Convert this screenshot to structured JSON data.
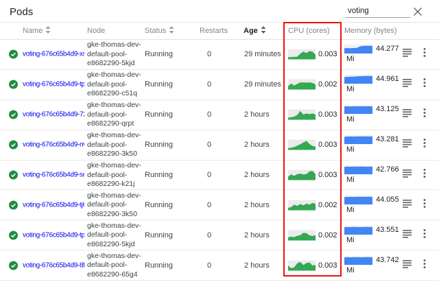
{
  "header": {
    "title": "Pods",
    "search": {
      "value": "voting"
    }
  },
  "colors": {
    "link_blue": "#7088d0",
    "ok_green": "#1e8e3e",
    "chart_green": "#34a853",
    "chart_green_bg": "#ebebeb",
    "chart_blue": "#4285f4",
    "chart_blue_bg": "#f1f1f1",
    "highlight_red": "#ee1111"
  },
  "table": {
    "columns": [
      {
        "label": "Name",
        "sortable": true
      },
      {
        "label": "Node",
        "sortable": false
      },
      {
        "label": "Status",
        "sortable": true
      },
      {
        "label": "Restarts",
        "sortable": false
      },
      {
        "label": "Age",
        "sortable": true,
        "active_sort": true
      },
      {
        "label": "CPU (cores)",
        "sortable": false
      },
      {
        "label": "Memory (bytes)",
        "sortable": false
      }
    ],
    "rows": [
      {
        "name": "voting-676c65b4d9-xs-",
        "node_lines": [
          "gke-thomas-dev-",
          "default-pool-",
          "e8682290-5kjd"
        ],
        "status": "Running",
        "restarts": "0",
        "age": "29 minutes",
        "cpu_value": "0.003",
        "cpu_points": [
          0.18,
          0.18,
          0.2,
          0.22,
          0.55,
          0.8,
          0.62,
          0.85,
          0.78,
          0.45
        ],
        "memory_value": "44.277",
        "memory_unit": "Mi",
        "memory_points": [
          0.62,
          0.63,
          0.62,
          0.64,
          0.66,
          0.85,
          0.92,
          0.93,
          0.93,
          0.92
        ]
      },
      {
        "name": "voting-676c65b4d9-tpr",
        "node_lines": [
          "gke-thomas-dev-",
          "default-pool-",
          "e8682290-c51q"
        ],
        "status": "Running",
        "restarts": "0",
        "age": "29 minutes",
        "cpu_value": "0.002",
        "cpu_points": [
          0.3,
          0.6,
          0.38,
          0.55,
          0.72,
          0.72,
          0.7,
          0.72,
          0.66,
          0.5
        ],
        "memory_value": "44.961",
        "memory_unit": "Mi",
        "memory_points": [
          0.8,
          0.82,
          0.84,
          0.85,
          0.88,
          0.9,
          0.92,
          0.93,
          0.93,
          0.92
        ]
      },
      {
        "name": "voting-676c65b4d9-72",
        "node_lines": [
          "gke-thomas-dev-",
          "default-pool-",
          "e8682290-qrpt"
        ],
        "status": "Running",
        "restarts": "0",
        "age": "2 hours",
        "cpu_value": "0.003",
        "cpu_points": [
          0.15,
          0.2,
          0.28,
          0.45,
          0.9,
          0.5,
          0.62,
          0.55,
          0.62,
          0.5
        ],
        "memory_value": "43.125",
        "memory_unit": "Mi",
        "memory_points": [
          0.9,
          0.91,
          0.9,
          0.92,
          0.91,
          0.92,
          0.91,
          0.92,
          0.92,
          0.91
        ]
      },
      {
        "name": "voting-676c65b4d9-nvt",
        "node_lines": [
          "gke-thomas-dev-",
          "default-pool-",
          "e8682290-3k50"
        ],
        "status": "Running",
        "restarts": "0",
        "age": "2 hours",
        "cpu_value": "0.003",
        "cpu_points": [
          0.12,
          0.18,
          0.25,
          0.4,
          0.55,
          0.75,
          0.95,
          0.6,
          0.35,
          0.3
        ],
        "memory_value": "43.281",
        "memory_unit": "Mi",
        "memory_points": [
          0.88,
          0.9,
          0.92,
          0.91,
          0.92,
          0.93,
          0.92,
          0.93,
          0.92,
          0.93
        ]
      },
      {
        "name": "voting-676c65b4d9-srl",
        "node_lines": [
          "gke-thomas-dev-",
          "default-pool-",
          "e8682290-k21j"
        ],
        "status": "Running",
        "restarts": "0",
        "age": "2 hours",
        "cpu_value": "0.003",
        "cpu_points": [
          0.3,
          0.55,
          0.4,
          0.6,
          0.65,
          0.55,
          0.6,
          0.9,
          0.95,
          0.6
        ],
        "memory_value": "42.766",
        "memory_unit": "Mi",
        "memory_points": [
          0.9,
          0.92,
          0.91,
          0.93,
          0.92,
          0.93,
          0.92,
          0.91,
          0.92,
          0.92
        ]
      },
      {
        "name": "voting-676c65b4d9-tj6",
        "node_lines": [
          "gke-thomas-dev-",
          "default-pool-",
          "e8682290-3k50"
        ],
        "status": "Running",
        "restarts": "0",
        "age": "2 hours",
        "cpu_value": "0.002",
        "cpu_points": [
          0.2,
          0.28,
          0.55,
          0.42,
          0.62,
          0.48,
          0.68,
          0.55,
          0.75,
          0.65
        ],
        "memory_value": "44.055",
        "memory_unit": "Mi",
        "memory_points": [
          0.89,
          0.9,
          0.92,
          0.91,
          0.93,
          0.92,
          0.93,
          0.92,
          0.93,
          0.92
        ]
      },
      {
        "name": "voting-676c65b4d9-tpj",
        "node_lines": [
          "gke-thomas-dev-",
          "default-pool-",
          "e8682290-5kjd"
        ],
        "status": "Running",
        "restarts": "0",
        "age": "2 hours",
        "cpu_value": "0.002",
        "cpu_points": [
          0.28,
          0.35,
          0.3,
          0.45,
          0.52,
          0.78,
          0.75,
          0.5,
          0.42,
          0.52
        ],
        "memory_value": "43.551",
        "memory_unit": "Mi",
        "memory_points": [
          0.9,
          0.91,
          0.92,
          0.93,
          0.92,
          0.91,
          0.92,
          0.93,
          0.92,
          0.93
        ]
      },
      {
        "name": "voting-676c65b4d9-8f8",
        "node_lines": [
          "gke-thomas-dev-",
          "default-pool-",
          "e8682290-65g4"
        ],
        "status": "Running",
        "restarts": "0",
        "age": "2 hours",
        "cpu_value": "0.003",
        "cpu_points": [
          0.5,
          0.2,
          0.3,
          0.75,
          0.9,
          0.55,
          0.78,
          0.85,
          0.5,
          0.58
        ],
        "memory_value": "43.742",
        "memory_unit": "Mi",
        "memory_points": [
          0.9,
          0.92,
          0.91,
          0.92,
          0.93,
          0.92,
          0.91,
          0.93,
          0.92,
          0.92
        ]
      }
    ]
  }
}
